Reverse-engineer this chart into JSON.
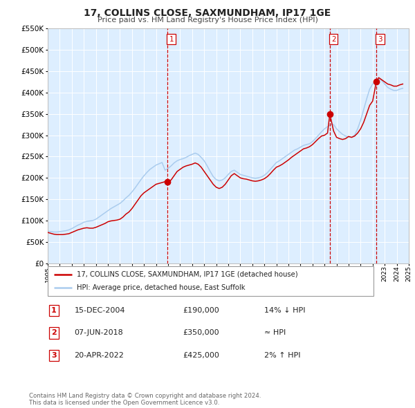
{
  "title": "17, COLLINS CLOSE, SAXMUNDHAM, IP17 1GE",
  "subtitle": "Price paid vs. HM Land Registry's House Price Index (HPI)",
  "red_label": "17, COLLINS CLOSE, SAXMUNDHAM, IP17 1GE (detached house)",
  "blue_label": "HPI: Average price, detached house, East Suffolk",
  "sale_markers": [
    {
      "num": 1,
      "date_num": 2004.96,
      "price": 190000,
      "label": "15-DEC-2004",
      "amount": "£190,000",
      "rel": "14% ↓ HPI"
    },
    {
      "num": 2,
      "date_num": 2018.44,
      "price": 350000,
      "label": "07-JUN-2018",
      "amount": "£350,000",
      "rel": "≈ HPI"
    },
    {
      "num": 3,
      "date_num": 2022.3,
      "price": 425000,
      "label": "20-APR-2022",
      "amount": "£425,000",
      "rel": "2% ↑ HPI"
    }
  ],
  "vline_color": "#cc0000",
  "red_color": "#cc0000",
  "blue_color": "#aaccee",
  "plot_bg": "#ddeeff",
  "ylim": [
    0,
    550000
  ],
  "yticks": [
    0,
    50000,
    100000,
    150000,
    200000,
    250000,
    300000,
    350000,
    400000,
    450000,
    500000,
    550000
  ],
  "xlim": [
    1995,
    2025
  ],
  "xticks": [
    1995,
    1996,
    1997,
    1998,
    1999,
    2000,
    2001,
    2002,
    2003,
    2004,
    2005,
    2006,
    2007,
    2008,
    2009,
    2010,
    2011,
    2012,
    2013,
    2014,
    2015,
    2016,
    2017,
    2018,
    2019,
    2020,
    2021,
    2022,
    2023,
    2024,
    2025
  ],
  "footer": "Contains HM Land Registry data © Crown copyright and database right 2024.\nThis data is licensed under the Open Government Licence v3.0.",
  "red_data_x": [
    1995.0,
    1995.25,
    1995.5,
    1995.75,
    1996.0,
    1996.25,
    1996.5,
    1996.75,
    1997.0,
    1997.25,
    1997.5,
    1997.75,
    1998.0,
    1998.25,
    1998.5,
    1998.75,
    1999.0,
    1999.25,
    1999.5,
    1999.75,
    2000.0,
    2000.25,
    2000.5,
    2000.75,
    2001.0,
    2001.25,
    2001.5,
    2001.75,
    2002.0,
    2002.25,
    2002.5,
    2002.75,
    2003.0,
    2003.25,
    2003.5,
    2003.75,
    2004.0,
    2004.25,
    2004.5,
    2004.75,
    2004.96,
    2005.25,
    2005.5,
    2005.75,
    2006.0,
    2006.25,
    2006.5,
    2006.75,
    2007.0,
    2007.25,
    2007.5,
    2007.75,
    2008.0,
    2008.25,
    2008.5,
    2008.75,
    2009.0,
    2009.25,
    2009.5,
    2009.75,
    2010.0,
    2010.25,
    2010.5,
    2010.75,
    2011.0,
    2011.25,
    2011.5,
    2011.75,
    2012.0,
    2012.25,
    2012.5,
    2012.75,
    2013.0,
    2013.25,
    2013.5,
    2013.75,
    2014.0,
    2014.25,
    2014.5,
    2014.75,
    2015.0,
    2015.25,
    2015.5,
    2015.75,
    2016.0,
    2016.25,
    2016.5,
    2016.75,
    2017.0,
    2017.25,
    2017.5,
    2017.75,
    2018.0,
    2018.25,
    2018.44,
    2018.75,
    2019.0,
    2019.25,
    2019.5,
    2019.75,
    2020.0,
    2020.25,
    2020.5,
    2020.75,
    2021.0,
    2021.25,
    2021.5,
    2021.75,
    2022.0,
    2022.3,
    2022.5,
    2022.75,
    2023.0,
    2023.25,
    2023.5,
    2023.75,
    2024.0,
    2024.25,
    2024.5
  ],
  "red_data_y": [
    72000,
    70000,
    68000,
    67000,
    67000,
    67000,
    68000,
    69000,
    72000,
    75000,
    78000,
    80000,
    82000,
    83000,
    82000,
    82000,
    84000,
    87000,
    90000,
    93000,
    97000,
    99000,
    100000,
    101000,
    103000,
    108000,
    115000,
    120000,
    128000,
    138000,
    148000,
    158000,
    165000,
    170000,
    175000,
    180000,
    185000,
    187000,
    189000,
    191000,
    190000,
    195000,
    205000,
    215000,
    220000,
    225000,
    228000,
    230000,
    232000,
    235000,
    232000,
    225000,
    215000,
    205000,
    195000,
    185000,
    178000,
    175000,
    178000,
    185000,
    195000,
    205000,
    210000,
    205000,
    200000,
    198000,
    197000,
    195000,
    193000,
    192000,
    193000,
    195000,
    198000,
    203000,
    210000,
    218000,
    225000,
    228000,
    232000,
    237000,
    242000,
    248000,
    253000,
    258000,
    263000,
    268000,
    270000,
    273000,
    278000,
    285000,
    292000,
    298000,
    300000,
    305000,
    350000,
    310000,
    295000,
    292000,
    290000,
    292000,
    297000,
    295000,
    298000,
    305000,
    315000,
    330000,
    350000,
    370000,
    380000,
    425000,
    435000,
    430000,
    425000,
    420000,
    418000,
    415000,
    415000,
    418000,
    420000
  ],
  "blue_data_x": [
    1995.0,
    1995.25,
    1995.5,
    1995.75,
    1996.0,
    1996.25,
    1996.5,
    1996.75,
    1997.0,
    1997.25,
    1997.5,
    1997.75,
    1998.0,
    1998.25,
    1998.5,
    1998.75,
    1999.0,
    1999.25,
    1999.5,
    1999.75,
    2000.0,
    2000.25,
    2000.5,
    2000.75,
    2001.0,
    2001.25,
    2001.5,
    2001.75,
    2002.0,
    2002.25,
    2002.5,
    2002.75,
    2003.0,
    2003.25,
    2003.5,
    2003.75,
    2004.0,
    2004.25,
    2004.5,
    2004.75,
    2005.0,
    2005.25,
    2005.5,
    2005.75,
    2006.0,
    2006.25,
    2006.5,
    2006.75,
    2007.0,
    2007.25,
    2007.5,
    2007.75,
    2008.0,
    2008.25,
    2008.5,
    2008.75,
    2009.0,
    2009.25,
    2009.5,
    2009.75,
    2010.0,
    2010.25,
    2010.5,
    2010.75,
    2011.0,
    2011.25,
    2011.5,
    2011.75,
    2012.0,
    2012.25,
    2012.5,
    2012.75,
    2013.0,
    2013.25,
    2013.5,
    2013.75,
    2014.0,
    2014.25,
    2014.5,
    2014.75,
    2015.0,
    2015.25,
    2015.5,
    2015.75,
    2016.0,
    2016.25,
    2016.5,
    2016.75,
    2017.0,
    2017.25,
    2017.5,
    2017.75,
    2018.0,
    2018.25,
    2018.5,
    2018.75,
    2019.0,
    2019.25,
    2019.5,
    2019.75,
    2020.0,
    2020.25,
    2020.5,
    2020.75,
    2021.0,
    2021.25,
    2021.5,
    2021.75,
    2022.0,
    2022.25,
    2022.5,
    2022.75,
    2023.0,
    2023.25,
    2023.5,
    2023.75,
    2024.0,
    2024.25,
    2024.5
  ],
  "blue_data_y": [
    75000,
    74000,
    73000,
    73000,
    74000,
    75000,
    76000,
    78000,
    81000,
    85000,
    89000,
    92000,
    96000,
    98000,
    99000,
    100000,
    103000,
    108000,
    113000,
    118000,
    123000,
    128000,
    132000,
    136000,
    140000,
    146000,
    153000,
    159000,
    167000,
    176000,
    186000,
    196000,
    205000,
    213000,
    220000,
    225000,
    230000,
    233000,
    236000,
    218000,
    222000,
    228000,
    235000,
    240000,
    243000,
    245000,
    248000,
    252000,
    255000,
    258000,
    255000,
    248000,
    240000,
    228000,
    215000,
    203000,
    196000,
    193000,
    195000,
    200000,
    208000,
    215000,
    218000,
    213000,
    208000,
    206000,
    204000,
    202000,
    200000,
    199000,
    200000,
    202000,
    206000,
    212000,
    220000,
    228000,
    236000,
    240000,
    245000,
    250000,
    255000,
    260000,
    265000,
    268000,
    272000,
    276000,
    278000,
    280000,
    285000,
    292000,
    300000,
    308000,
    315000,
    320000,
    325000,
    325000,
    315000,
    308000,
    302000,
    298000,
    296000,
    295000,
    300000,
    315000,
    335000,
    360000,
    385000,
    408000,
    420000,
    428000,
    432000,
    428000,
    420000,
    412000,
    408000,
    405000,
    405000,
    408000,
    410000
  ]
}
